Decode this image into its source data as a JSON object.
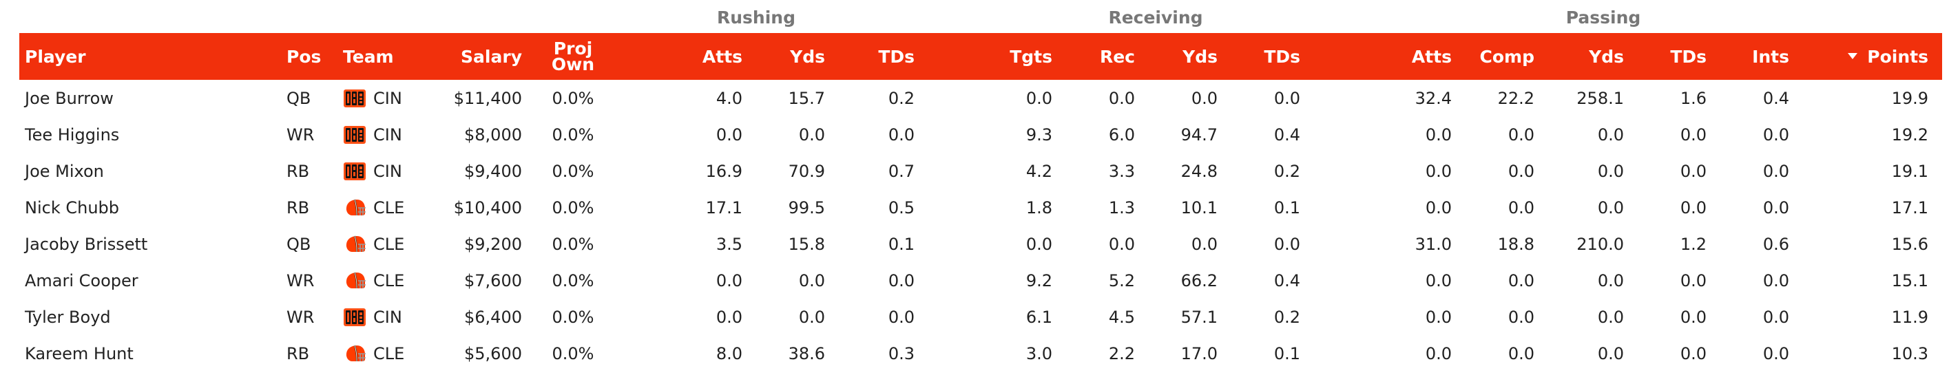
{
  "groups": {
    "rushing": "Rushing",
    "receiving": "Receiving",
    "passing": "Passing"
  },
  "headers": {
    "player": "Player",
    "pos": "Pos",
    "team": "Team",
    "salary": "Salary",
    "proj_own_1": "Proj",
    "proj_own_2": "Own",
    "rush_atts": "Atts",
    "rush_yds": "Yds",
    "rush_tds": "TDs",
    "rec_tgts": "Tgts",
    "rec_rec": "Rec",
    "rec_yds": "Yds",
    "rec_tds": "TDs",
    "pass_atts": "Atts",
    "pass_comp": "Comp",
    "pass_yds": "Yds",
    "pass_tds": "TDs",
    "pass_ints": "Ints",
    "points": "Points"
  },
  "colors": {
    "header_bg": "#f1300c",
    "bengals": "#fb4f14",
    "browns": "#ff3c00"
  },
  "rows": [
    {
      "player": "Joe Burrow",
      "pos": "QB",
      "team": "CIN",
      "logo": "bengals-logo-icon",
      "salary": "$11,400",
      "own": "0.0%",
      "rush_atts": "4.0",
      "rush_yds": "15.7",
      "rush_tds": "0.2",
      "tgts": "0.0",
      "rec": "0.0",
      "rec_yds": "0.0",
      "rec_tds": "0.0",
      "pass_atts": "32.4",
      "comp": "22.2",
      "pass_yds": "258.1",
      "pass_tds": "1.6",
      "ints": "0.4",
      "points": "19.9"
    },
    {
      "player": "Tee Higgins",
      "pos": "WR",
      "team": "CIN",
      "logo": "bengals-logo-icon",
      "salary": "$8,000",
      "own": "0.0%",
      "rush_atts": "0.0",
      "rush_yds": "0.0",
      "rush_tds": "0.0",
      "tgts": "9.3",
      "rec": "6.0",
      "rec_yds": "94.7",
      "rec_tds": "0.4",
      "pass_atts": "0.0",
      "comp": "0.0",
      "pass_yds": "0.0",
      "pass_tds": "0.0",
      "ints": "0.0",
      "points": "19.2"
    },
    {
      "player": "Joe Mixon",
      "pos": "RB",
      "team": "CIN",
      "logo": "bengals-logo-icon",
      "salary": "$9,400",
      "own": "0.0%",
      "rush_atts": "16.9",
      "rush_yds": "70.9",
      "rush_tds": "0.7",
      "tgts": "4.2",
      "rec": "3.3",
      "rec_yds": "24.8",
      "rec_tds": "0.2",
      "pass_atts": "0.0",
      "comp": "0.0",
      "pass_yds": "0.0",
      "pass_tds": "0.0",
      "ints": "0.0",
      "points": "19.1"
    },
    {
      "player": "Nick Chubb",
      "pos": "RB",
      "team": "CLE",
      "logo": "browns-helmet-icon",
      "salary": "$10,400",
      "own": "0.0%",
      "rush_atts": "17.1",
      "rush_yds": "99.5",
      "rush_tds": "0.5",
      "tgts": "1.8",
      "rec": "1.3",
      "rec_yds": "10.1",
      "rec_tds": "0.1",
      "pass_atts": "0.0",
      "comp": "0.0",
      "pass_yds": "0.0",
      "pass_tds": "0.0",
      "ints": "0.0",
      "points": "17.1"
    },
    {
      "player": "Jacoby Brissett",
      "pos": "QB",
      "team": "CLE",
      "logo": "browns-helmet-icon",
      "salary": "$9,200",
      "own": "0.0%",
      "rush_atts": "3.5",
      "rush_yds": "15.8",
      "rush_tds": "0.1",
      "tgts": "0.0",
      "rec": "0.0",
      "rec_yds": "0.0",
      "rec_tds": "0.0",
      "pass_atts": "31.0",
      "comp": "18.8",
      "pass_yds": "210.0",
      "pass_tds": "1.2",
      "ints": "0.6",
      "points": "15.6"
    },
    {
      "player": "Amari Cooper",
      "pos": "WR",
      "team": "CLE",
      "logo": "browns-helmet-icon",
      "salary": "$7,600",
      "own": "0.0%",
      "rush_atts": "0.0",
      "rush_yds": "0.0",
      "rush_tds": "0.0",
      "tgts": "9.2",
      "rec": "5.2",
      "rec_yds": "66.2",
      "rec_tds": "0.4",
      "pass_atts": "0.0",
      "comp": "0.0",
      "pass_yds": "0.0",
      "pass_tds": "0.0",
      "ints": "0.0",
      "points": "15.1"
    },
    {
      "player": "Tyler Boyd",
      "pos": "WR",
      "team": "CIN",
      "logo": "bengals-logo-icon",
      "salary": "$6,400",
      "own": "0.0%",
      "rush_atts": "0.0",
      "rush_yds": "0.0",
      "rush_tds": "0.0",
      "tgts": "6.1",
      "rec": "4.5",
      "rec_yds": "57.1",
      "rec_tds": "0.2",
      "pass_atts": "0.0",
      "comp": "0.0",
      "pass_yds": "0.0",
      "pass_tds": "0.0",
      "ints": "0.0",
      "points": "11.9"
    },
    {
      "player": "Kareem Hunt",
      "pos": "RB",
      "team": "CLE",
      "logo": "browns-helmet-icon",
      "salary": "$5,600",
      "own": "0.0%",
      "rush_atts": "8.0",
      "rush_yds": "38.6",
      "rush_tds": "0.3",
      "tgts": "3.0",
      "rec": "2.2",
      "rec_yds": "17.0",
      "rec_tds": "0.1",
      "pass_atts": "0.0",
      "comp": "0.0",
      "pass_yds": "0.0",
      "pass_tds": "0.0",
      "ints": "0.0",
      "points": "10.3"
    }
  ]
}
